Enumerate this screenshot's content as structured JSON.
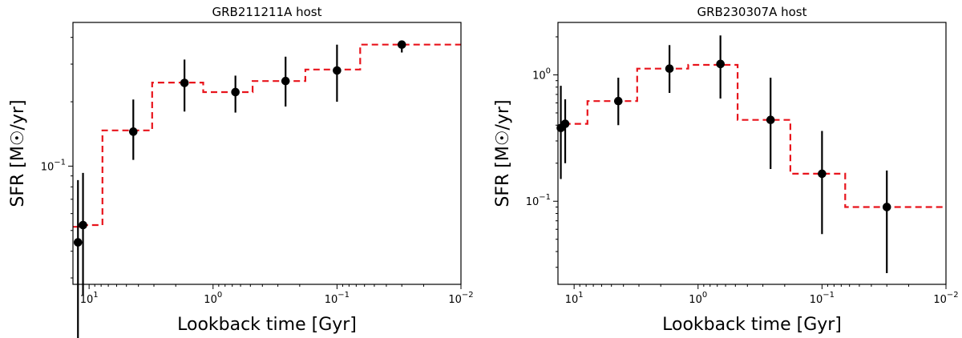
{
  "chart_data": [
    {
      "type": "step+scatter",
      "title": "GRB211211A host",
      "xlabel": "Lookback time [Gyr]",
      "ylabel": "SFR [M☉/yr]",
      "xscale": "log",
      "yscale": "log",
      "xaxis_inverted": true,
      "xlim": [
        13.5,
        0.01
      ],
      "ylim": [
        0.028,
        0.47
      ],
      "xticks": [
        {
          "value": 10,
          "label_base": "10",
          "label_exp": "1"
        },
        {
          "value": 1,
          "label_base": "10",
          "label_exp": "0"
        },
        {
          "value": 0.1,
          "label_base": "10",
          "label_exp": "−1"
        },
        {
          "value": 0.01,
          "label_base": "10",
          "label_exp": "−2"
        }
      ],
      "yticks": [
        {
          "value": 0.1,
          "label_base": "10",
          "label_exp": "−1"
        }
      ],
      "step_series": {
        "name": "SFH model",
        "color": "#e8141c",
        "bin_edges": [
          13.5,
          11.0,
          7.8,
          3.1,
          1.2,
          0.48,
          0.18,
          0.065,
          0.01
        ],
        "values": [
          0.052,
          0.053,
          0.147,
          0.246,
          0.222,
          0.25,
          0.283,
          0.37
        ]
      },
      "points": {
        "x": [
          12.3,
          11.2,
          4.4,
          1.7,
          0.66,
          0.26,
          0.1,
          0.03
        ],
        "y": [
          0.044,
          0.053,
          0.145,
          0.245,
          0.222,
          0.25,
          0.28,
          0.37
        ],
        "yerr_low": [
          0.015,
          0.025,
          0.107,
          0.18,
          0.178,
          0.19,
          0.2,
          0.34
        ],
        "yerr_high": [
          0.086,
          0.093,
          0.205,
          0.315,
          0.265,
          0.325,
          0.37,
          0.385
        ]
      }
    },
    {
      "type": "step+scatter",
      "title": "GRB230307A host",
      "xlabel": "Lookback time [Gyr]",
      "ylabel": "SFR [M☉/yr]",
      "xscale": "log",
      "yscale": "log",
      "xaxis_inverted": true,
      "xlim": [
        13.5,
        0.01
      ],
      "ylim": [
        0.022,
        2.6
      ],
      "xticks": [
        {
          "value": 10,
          "label_base": "10",
          "label_exp": "1"
        },
        {
          "value": 1,
          "label_base": "10",
          "label_exp": "0"
        },
        {
          "value": 0.1,
          "label_base": "10",
          "label_exp": "−1"
        },
        {
          "value": 0.01,
          "label_base": "10",
          "label_exp": "−2"
        }
      ],
      "yticks": [
        {
          "value": 0.1,
          "label_base": "10",
          "label_exp": "−1"
        },
        {
          "value": 1,
          "label_base": "10",
          "label_exp": "0"
        }
      ],
      "step_series": {
        "name": "SFH model",
        "color": "#e8141c",
        "bin_edges": [
          13.5,
          12.0,
          7.8,
          3.1,
          1.2,
          0.48,
          0.18,
          0.065,
          0.01
        ],
        "values": [
          0.38,
          0.41,
          0.62,
          1.12,
          1.2,
          0.44,
          0.165,
          0.09
        ]
      },
      "points": {
        "x": [
          12.8,
          11.8,
          4.4,
          1.7,
          0.66,
          0.26,
          0.1,
          0.03
        ],
        "y": [
          0.38,
          0.41,
          0.62,
          1.12,
          1.22,
          0.44,
          0.165,
          0.09
        ],
        "yerr_low": [
          0.15,
          0.2,
          0.4,
          0.72,
          0.65,
          0.18,
          0.055,
          0.027
        ],
        "yerr_high": [
          0.82,
          0.64,
          0.95,
          1.72,
          2.05,
          0.95,
          0.36,
          0.175
        ]
      }
    }
  ]
}
